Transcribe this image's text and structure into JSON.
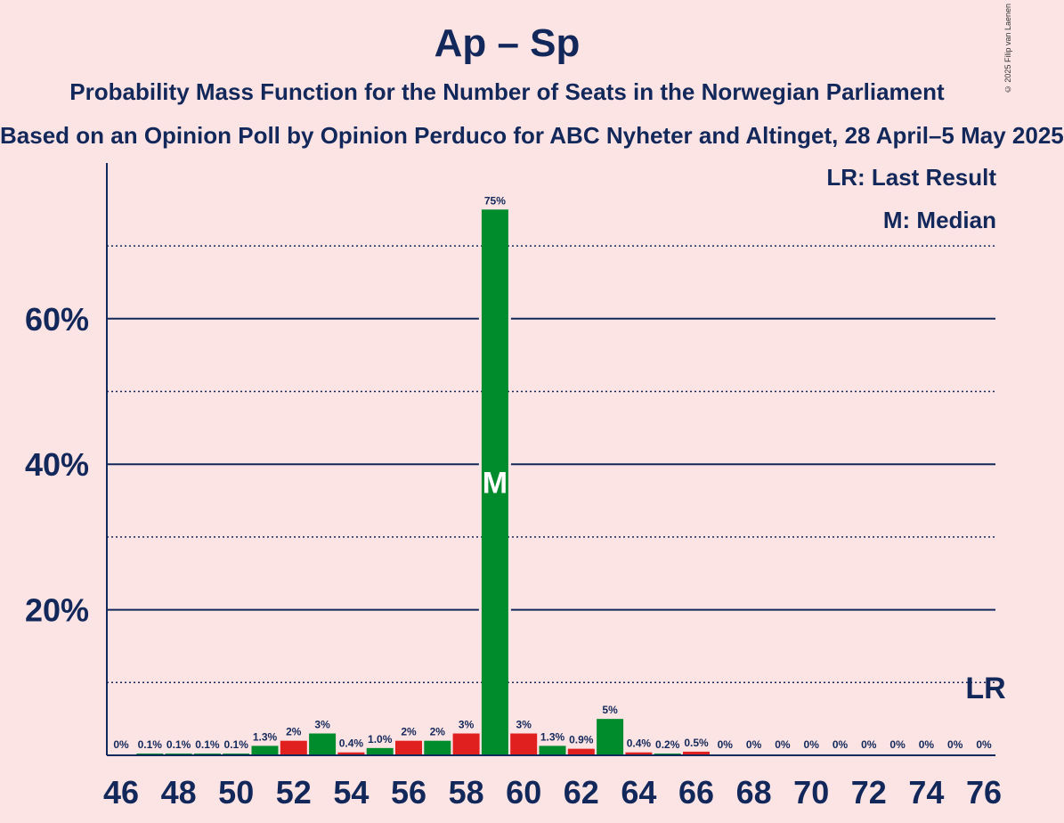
{
  "header": {
    "title": "Ap – Sp",
    "subtitle": "Probability Mass Function for the Number of Seats in the Norwegian Parliament",
    "subsubtitle": "Based on an Opinion Poll by Opinion Perduco for ABC Nyheter and Altinget, 28 April–5 May 2025",
    "copyright": "© 2025 Filip van Laenen"
  },
  "legend": {
    "last_result": "LR: Last Result",
    "median": "M: Median"
  },
  "colors": {
    "green": "#008b2d",
    "red": "#e0201f",
    "navy": "#12285a",
    "background": "#fde4e4"
  },
  "chart_data": {
    "type": "bar",
    "title": "Ap – Sp",
    "xlabel": "",
    "ylabel": "",
    "ylim": [
      0,
      80
    ],
    "yticks": [
      20,
      40,
      60
    ],
    "ytick_labels": [
      "20%",
      "40%",
      "60%"
    ],
    "x": [
      46,
      47,
      48,
      49,
      50,
      51,
      52,
      53,
      54,
      55,
      56,
      57,
      58,
      59,
      60,
      61,
      62,
      63,
      64,
      65,
      66,
      67,
      68,
      69,
      70,
      71,
      72,
      73,
      74,
      75,
      76
    ],
    "values": [
      0,
      0.1,
      0.1,
      0.1,
      0.1,
      1.3,
      2,
      3,
      0.4,
      1.0,
      2,
      2,
      3,
      75,
      3,
      1.3,
      0.9,
      5,
      0.4,
      0.2,
      0.5,
      0,
      0,
      0,
      0,
      0,
      0,
      0,
      0,
      0,
      0
    ],
    "labels": [
      "0%",
      "0.1%",
      "0.1%",
      "0.1%",
      "0.1%",
      "1.3%",
      "2%",
      "3%",
      "0.4%",
      "1.0%",
      "2%",
      "2%",
      "3%",
      "75%",
      "3%",
      "1.3%",
      "0.9%",
      "5%",
      "0.4%",
      "0.2%",
      "0.5%",
      "0%",
      "0%",
      "0%",
      "0%",
      "0%",
      "0%",
      "0%",
      "0%",
      "0%",
      "0%"
    ],
    "bar_colors": [
      "green",
      "green",
      "green",
      "green",
      "green",
      "green",
      "red",
      "green",
      "red",
      "green",
      "red",
      "green",
      "red",
      "green",
      "red",
      "green",
      "red",
      "green",
      "red",
      "green",
      "red",
      "green",
      "red",
      "green",
      "red",
      "green",
      "red",
      "green",
      "red",
      "green",
      "red"
    ],
    "xtick_labels": [
      "46",
      "48",
      "50",
      "52",
      "54",
      "56",
      "58",
      "60",
      "62",
      "64",
      "66",
      "68",
      "70",
      "72",
      "74",
      "76"
    ],
    "median_seat": 59,
    "median_marker": "M",
    "last_result_seat": 76,
    "last_result_marker": "LR"
  }
}
